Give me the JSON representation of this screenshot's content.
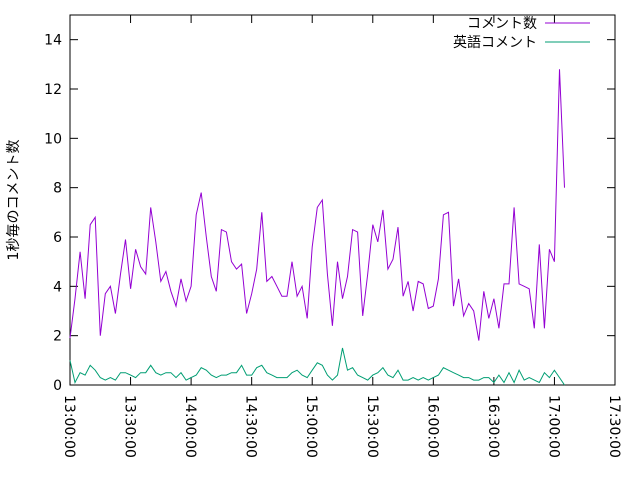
{
  "chart_data": {
    "type": "line",
    "ylabel": "1秒毎のコメント数",
    "x": [
      "13:00:00",
      "13:02:30",
      "13:05:00",
      "13:07:30",
      "13:10:00",
      "13:12:30",
      "13:15:00",
      "13:17:30",
      "13:20:00",
      "13:22:30",
      "13:25:00",
      "13:27:30",
      "13:30:00",
      "13:32:30",
      "13:35:00",
      "13:37:30",
      "13:40:00",
      "13:42:30",
      "13:45:00",
      "13:47:30",
      "13:50:00",
      "13:52:30",
      "13:55:00",
      "13:57:30",
      "14:00:00",
      "14:02:30",
      "14:05:00",
      "14:07:30",
      "14:10:00",
      "14:12:30",
      "14:15:00",
      "14:17:30",
      "14:20:00",
      "14:22:30",
      "14:25:00",
      "14:27:30",
      "14:30:00",
      "14:32:30",
      "14:35:00",
      "14:37:30",
      "14:40:00",
      "14:42:30",
      "14:45:00",
      "14:47:30",
      "14:50:00",
      "14:52:30",
      "14:55:00",
      "14:57:30",
      "15:00:00",
      "15:02:30",
      "15:05:00",
      "15:07:30",
      "15:10:00",
      "15:12:30",
      "15:15:00",
      "15:17:30",
      "15:20:00",
      "15:22:30",
      "15:25:00",
      "15:27:30",
      "15:30:00",
      "15:32:30",
      "15:35:00",
      "15:37:30",
      "15:40:00",
      "15:42:30",
      "15:45:00",
      "15:47:30",
      "15:50:00",
      "15:52:30",
      "15:55:00",
      "15:57:30",
      "16:00:00",
      "16:02:30",
      "16:05:00",
      "16:07:30",
      "16:10:00",
      "16:12:30",
      "16:15:00",
      "16:17:30",
      "16:20:00",
      "16:22:30",
      "16:25:00",
      "16:27:30",
      "16:30:00",
      "16:32:30",
      "16:35:00",
      "16:37:30",
      "16:40:00",
      "16:42:30",
      "16:45:00",
      "16:47:30",
      "16:50:00",
      "16:52:30",
      "16:55:00",
      "16:57:30",
      "17:00:00",
      "17:02:30",
      "17:05:00"
    ],
    "series": [
      {
        "name": "コメント数",
        "color": "#9400d3",
        "values": [
          1.9,
          3.5,
          5.4,
          3.5,
          6.5,
          6.8,
          2.0,
          3.7,
          4.0,
          2.9,
          4.5,
          5.9,
          3.9,
          5.5,
          4.8,
          4.5,
          7.2,
          5.8,
          4.2,
          4.6,
          3.8,
          3.2,
          4.3,
          3.4,
          4.0,
          6.9,
          7.8,
          6.0,
          4.4,
          3.8,
          6.3,
          6.2,
          5.0,
          4.7,
          4.9,
          2.9,
          3.7,
          4.7,
          7.0,
          4.2,
          4.4,
          4.0,
          3.6,
          3.6,
          5.0,
          3.6,
          4.0,
          2.7,
          5.6,
          7.2,
          7.5,
          4.5,
          2.4,
          5.0,
          3.5,
          4.4,
          6.3,
          6.2,
          2.8,
          4.5,
          6.5,
          5.8,
          7.1,
          4.7,
          5.1,
          6.4,
          3.6,
          4.2,
          3.0,
          4.2,
          4.1,
          3.1,
          3.2,
          4.3,
          6.9,
          7.0,
          3.2,
          4.3,
          2.8,
          3.3,
          3.0,
          1.8,
          3.8,
          2.7,
          3.5,
          2.3,
          4.1,
          4.1,
          7.2,
          4.1,
          4.0,
          3.9,
          2.3,
          5.7,
          2.3,
          5.5,
          5.0,
          12.8,
          8.0
        ]
      },
      {
        "name": "英語コメント",
        "color": "#009e73",
        "values": [
          1.0,
          0.1,
          0.5,
          0.4,
          0.8,
          0.6,
          0.3,
          0.2,
          0.3,
          0.2,
          0.5,
          0.5,
          0.4,
          0.3,
          0.5,
          0.5,
          0.8,
          0.5,
          0.4,
          0.5,
          0.5,
          0.3,
          0.5,
          0.2,
          0.3,
          0.4,
          0.7,
          0.6,
          0.4,
          0.3,
          0.4,
          0.4,
          0.5,
          0.5,
          0.8,
          0.4,
          0.4,
          0.7,
          0.8,
          0.5,
          0.4,
          0.3,
          0.3,
          0.3,
          0.5,
          0.6,
          0.4,
          0.3,
          0.6,
          0.9,
          0.8,
          0.4,
          0.2,
          0.4,
          1.5,
          0.6,
          0.7,
          0.4,
          0.3,
          0.2,
          0.4,
          0.5,
          0.7,
          0.4,
          0.3,
          0.6,
          0.2,
          0.2,
          0.3,
          0.2,
          0.3,
          0.2,
          0.3,
          0.4,
          0.7,
          0.6,
          0.5,
          0.4,
          0.3,
          0.3,
          0.2,
          0.2,
          0.3,
          0.3,
          0.1,
          0.4,
          0.1,
          0.5,
          0.1,
          0.6,
          0.2,
          0.3,
          0.2,
          0.1,
          0.5,
          0.3,
          0.6,
          0.3,
          0.0
        ]
      }
    ],
    "xlim": [
      "13:00:00",
      "17:30:00"
    ],
    "xticks": [
      "13:00:00",
      "13:30:00",
      "14:00:00",
      "14:30:00",
      "15:00:00",
      "15:30:00",
      "16:00:00",
      "16:30:00",
      "17:00:00",
      "17:30:00"
    ],
    "ylim": [
      0,
      15
    ],
    "yticks": [
      0,
      2,
      4,
      6,
      8,
      10,
      12,
      14
    ],
    "legend": "top-right",
    "grid": false
  }
}
